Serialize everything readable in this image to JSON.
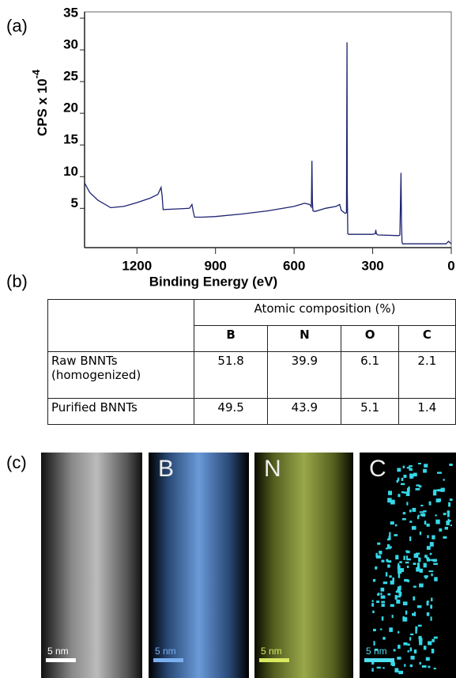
{
  "panel_labels": [
    "(a)",
    "(b)",
    "(c)"
  ],
  "chart_data": {
    "type": "line",
    "color": "#1c2270",
    "x_label": "Binding Energy (eV)",
    "y_label": "CPS x 10",
    "y_label_exponent": "-4",
    "xlim": [
      1400,
      0
    ],
    "xticks": [
      1200,
      900,
      600,
      300,
      0
    ],
    "ylim": [
      -1.2,
      36
    ],
    "yticks": [
      5,
      10,
      15,
      20,
      25,
      30,
      35
    ],
    "x": [
      1400,
      1380,
      1350,
      1300,
      1250,
      1200,
      1150,
      1120,
      1108,
      1104,
      1100,
      1050,
      1000,
      990,
      985,
      980,
      950,
      900,
      800,
      700,
      600,
      560,
      540,
      534,
      532,
      530,
      528,
      520,
      480,
      440,
      426,
      420,
      405,
      400,
      398,
      397,
      395,
      392,
      385,
      380,
      300,
      290,
      288,
      286,
      280,
      200,
      196,
      192,
      190,
      188,
      186,
      180,
      160,
      100,
      50,
      20,
      10,
      5,
      0
    ],
    "values": [
      9.0,
      7.5,
      6.3,
      5.1,
      5.3,
      5.9,
      6.6,
      7.2,
      8.3,
      7.0,
      4.8,
      4.9,
      5.0,
      5.6,
      4.5,
      3.6,
      3.6,
      3.7,
      4.1,
      4.6,
      5.3,
      5.8,
      5.6,
      5.2,
      12.5,
      6.0,
      4.6,
      4.5,
      5.0,
      5.3,
      5.6,
      4.7,
      4.2,
      4.3,
      31.2,
      8.0,
      1.0,
      0.9,
      0.9,
      0.9,
      0.9,
      1.0,
      1.6,
      1.0,
      0.8,
      0.7,
      0.8,
      10.6,
      3.0,
      -0.3,
      -0.6,
      -0.6,
      -0.6,
      -0.6,
      -0.6,
      -0.6,
      -0.2,
      -0.4,
      -0.6
    ]
  },
  "table": {
    "group_header": "Atomic composition (%)",
    "columns": [
      "B",
      "N",
      "O",
      "C"
    ],
    "rows": [
      {
        "label": "Raw BNNTs (homogenized)",
        "cells": [
          51.8,
          39.9,
          6.1,
          2.1
        ]
      },
      {
        "label": "Purified BNNTs",
        "cells": [
          49.5,
          43.9,
          5.1,
          1.4
        ]
      }
    ]
  },
  "micrographs": [
    {
      "scale": "5 nm"
    },
    {
      "label": "B",
      "scale": "5 nm"
    },
    {
      "label": "N",
      "scale": "5 nm"
    },
    {
      "label": "C",
      "scale": "5 nm"
    }
  ]
}
